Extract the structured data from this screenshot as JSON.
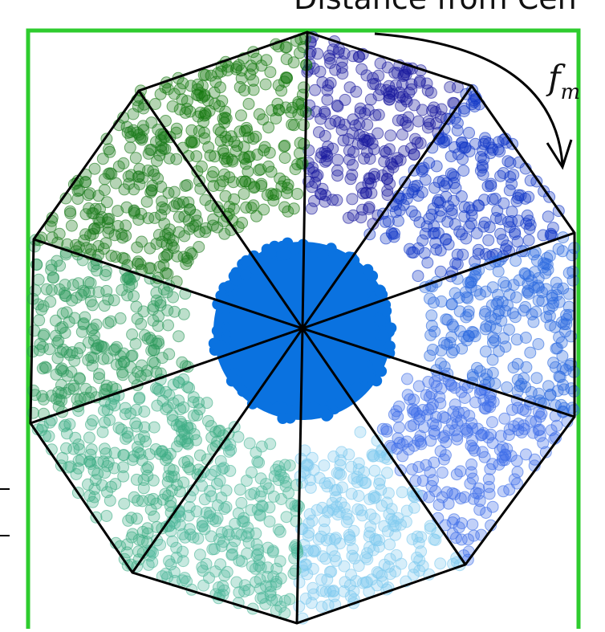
{
  "figure": {
    "title_partial": "Distance from Cen",
    "rotation_label": "f",
    "rotation_label_sub": "m"
  },
  "colors": {
    "frame": "#2ecc2e",
    "center": "#0a72e0",
    "sectors": [
      "#1a1a9e",
      "#1238c8",
      "#2d6be0",
      "#3d6ee8",
      "#7ec9ee",
      "#4fb89a",
      "#3fae86",
      "#2e9a5e",
      "#1a7a1a",
      "#16780f"
    ],
    "edges": "#000000",
    "arrow": "#000000"
  },
  "icons": {
    "rotation_arrow": "clockwise-arrow-icon"
  }
}
